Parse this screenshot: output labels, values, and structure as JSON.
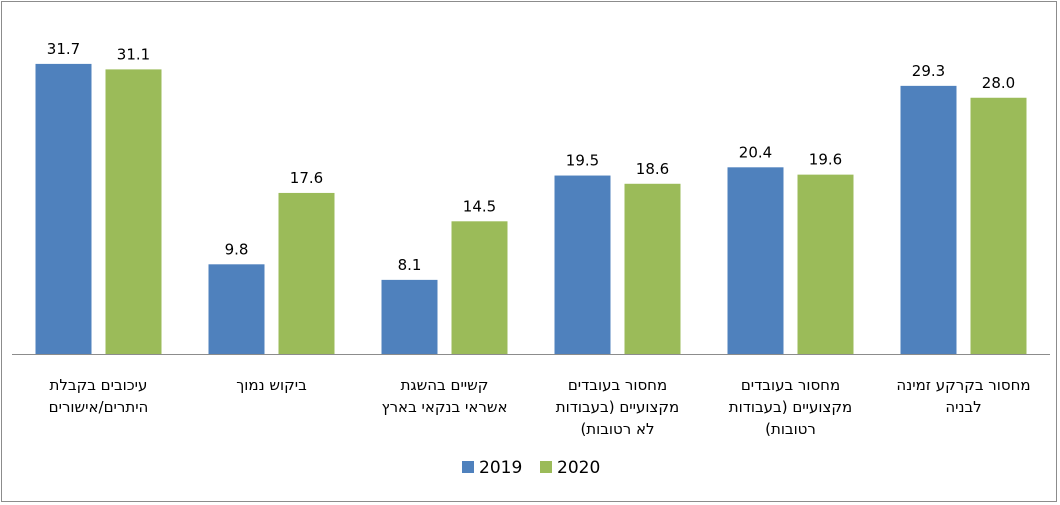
{
  "chart_data": {
    "type": "bar",
    "categories": [
      [
        "עיכובים בקבלת",
        "היתרים/אישורים"
      ],
      [
        "ביקוש נמוך"
      ],
      [
        "קשיים בהשגת",
        "אשראי בנקאי בארץ"
      ],
      [
        "מחסור בעובדים",
        "מקצועיים (בעבודות",
        "לא רטובות)"
      ],
      [
        "מחסור בעובדים",
        "מקצועיים (בעבודות",
        "רטובות)"
      ],
      [
        "מחסור בקרקע זמינה",
        "לבניה"
      ]
    ],
    "series": [
      {
        "name": "2019",
        "color": "#4f81bd",
        "values": [
          31.7,
          9.8,
          8.1,
          19.5,
          20.4,
          29.3
        ],
        "labels": [
          "31.7",
          "9.8",
          "8.1",
          "19.5",
          "20.4",
          "29.3"
        ]
      },
      {
        "name": "2020",
        "color": "#9bbb59",
        "values": [
          31.1,
          17.6,
          14.5,
          18.6,
          19.6,
          28.0
        ],
        "labels": [
          "31.1",
          "17.6",
          "14.5",
          "18.6",
          "19.6",
          "28.0"
        ]
      }
    ],
    "ylim": [
      0,
      33
    ],
    "grid": false,
    "legend": "bottom-center"
  }
}
